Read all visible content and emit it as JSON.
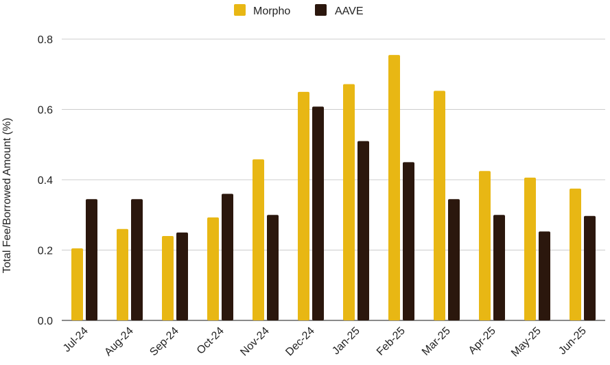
{
  "chart_data": {
    "type": "bar",
    "title": "",
    "xlabel": "",
    "ylabel": "Total Fee/Borrowed Amount (%)",
    "ylim": [
      0,
      0.8
    ],
    "yticks": [
      "0.0",
      "0.2",
      "0.4",
      "0.6",
      "0.8"
    ],
    "ytick_values": [
      0,
      0.2,
      0.4,
      0.6,
      0.8
    ],
    "grid": true,
    "legend_position": "top-center",
    "categories": [
      "Jul-24",
      "Aug-24",
      "Sep-24",
      "Oct-24",
      "Nov-24",
      "Dec-24",
      "Jan-25",
      "Feb-25",
      "Mar-25",
      "Apr-25",
      "May-25",
      "Jun-25"
    ],
    "series": [
      {
        "name": "Morpho",
        "color": "#E8B714",
        "values": [
          0.205,
          0.26,
          0.24,
          0.293,
          0.458,
          0.65,
          0.672,
          0.755,
          0.653,
          0.425,
          0.406,
          0.375
        ]
      },
      {
        "name": "AAVE",
        "color": "#2B170D",
        "values": [
          0.345,
          0.345,
          0.25,
          0.36,
          0.3,
          0.608,
          0.51,
          0.45,
          0.345,
          0.3,
          0.253,
          0.297
        ]
      }
    ]
  }
}
